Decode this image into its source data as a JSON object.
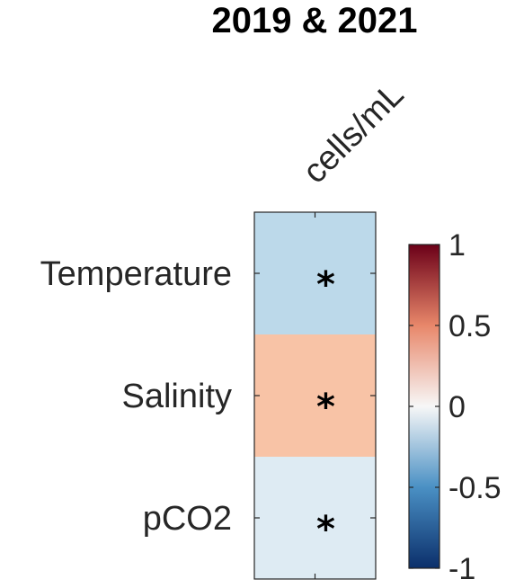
{
  "chart_data": {
    "type": "heatmap",
    "title": "2019 & 2021",
    "columns": [
      "cells/mL"
    ],
    "rows": [
      "Temperature",
      "Salinity",
      "pCO2"
    ],
    "values": [
      [
        -0.3
      ],
      [
        0.3
      ],
      [
        -0.1
      ]
    ],
    "significance": [
      [
        "*"
      ],
      [
        "*"
      ],
      [
        "*"
      ]
    ],
    "colorbar": {
      "range": [
        -1,
        1
      ],
      "ticks": [
        1,
        0.5,
        0,
        -0.5,
        -1
      ],
      "tick_labels": [
        "1",
        "0.5",
        "0",
        "-0.5",
        "-1"
      ],
      "colormap": "diverging red-white-blue",
      "colors": {
        "neg1": "#0b2f6b",
        "neg05": "#4a90c4",
        "zero": "#f7f7f7",
        "pos05": "#e8876a",
        "pos1": "#6b0018"
      }
    },
    "cell_colors": [
      "#bcd9ea",
      "#f8c3a6",
      "#deebf3"
    ]
  }
}
